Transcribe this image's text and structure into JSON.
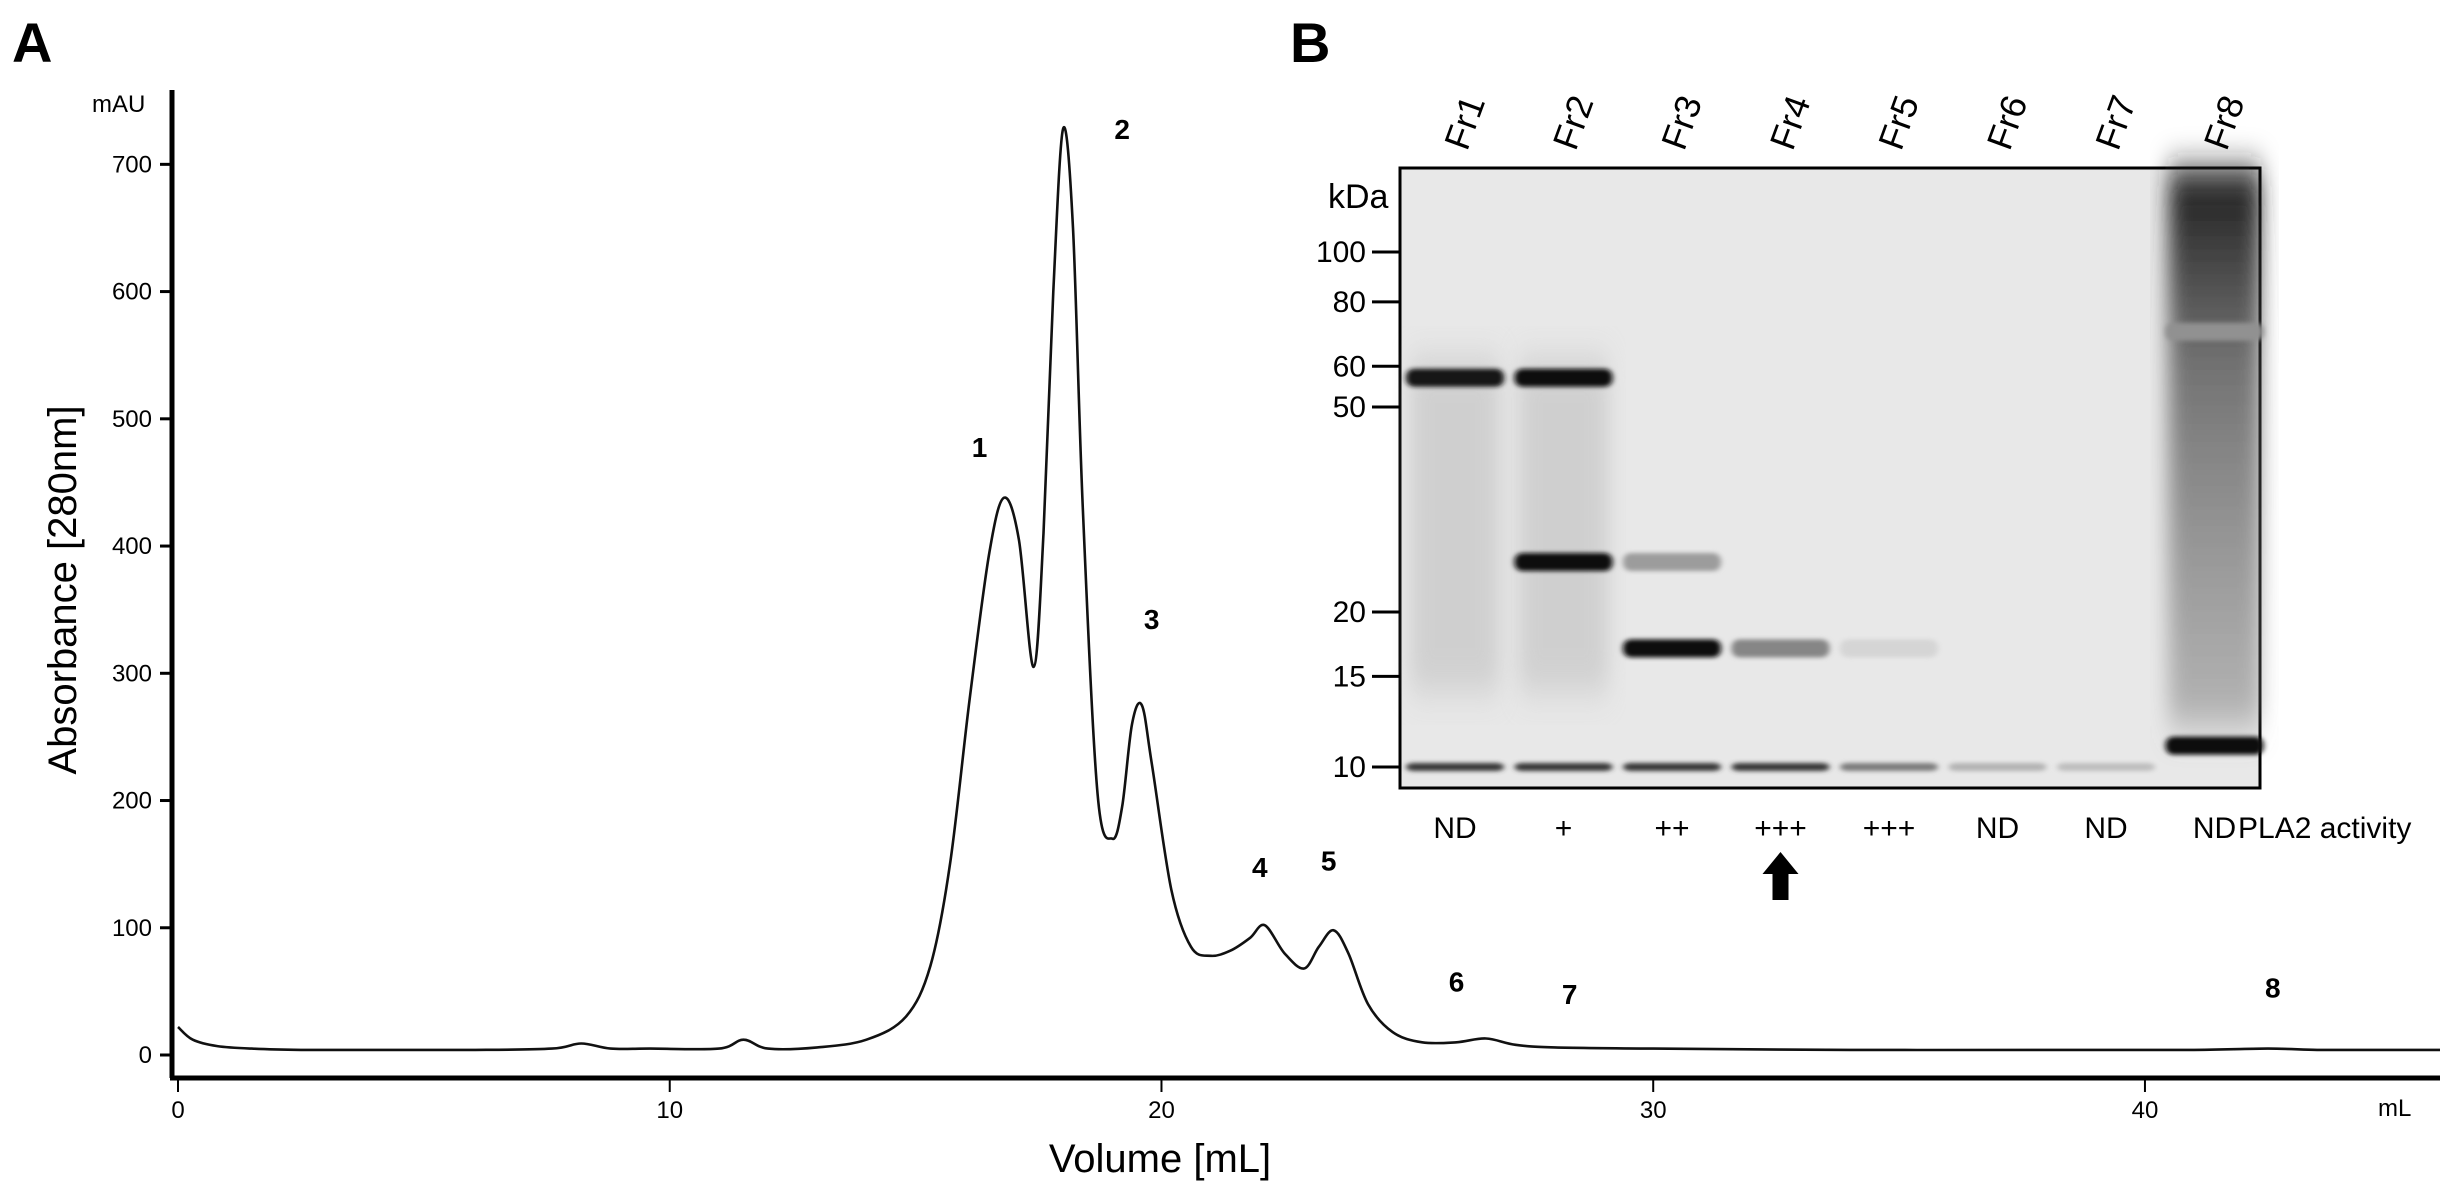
{
  "panel_a_label": "A",
  "panel_b_label": "B",
  "colors": {
    "trace": "#111111",
    "axis": "#000000",
    "gel_background": "#e8e8e8",
    "band": "#101010"
  },
  "chart_data": [
    {
      "type": "line",
      "panel": "A",
      "xlabel": "Volume [mL]",
      "ylabel": "Absorbance [280nm]",
      "x_unit": "mL",
      "y_unit": "mAU",
      "xlim": [
        0,
        46
      ],
      "ylim": [
        -10,
        760
      ],
      "x_ticks": [
        0,
        10,
        20,
        30,
        40
      ],
      "x_tick_labels": [
        "0",
        "10",
        "20",
        "30",
        "40"
      ],
      "y_ticks": [
        0,
        100,
        200,
        300,
        400,
        500,
        600,
        700
      ],
      "y_tick_labels": [
        "0",
        "100",
        "200",
        "300",
        "400",
        "500",
        "600",
        "700"
      ],
      "grid": false,
      "series": [
        {
          "x": [
            0,
            0.3,
            0.8,
            1.5,
            2.5,
            4,
            6,
            7.6,
            8.2,
            8.8,
            9.6,
            11,
            11.5,
            12,
            13,
            14,
            14.8,
            15.3,
            15.7,
            16.1,
            16.5,
            16.8,
            17.1,
            17.4,
            17.6,
            17.8,
            18.0,
            18.2,
            18.4,
            18.7,
            19.0,
            19.2,
            19.4,
            19.6,
            19.8,
            20.2,
            20.6,
            21.0,
            21.4,
            21.8,
            22.1,
            22.5,
            22.9,
            23.2,
            23.5,
            23.8,
            24.2,
            24.7,
            25.3,
            26.0,
            26.6,
            27.2,
            28.0,
            30,
            34,
            38,
            41,
            42.5,
            43.5,
            44.5,
            46
          ],
          "y": [
            22,
            12,
            7,
            5,
            4,
            4,
            4,
            5,
            9,
            5,
            5,
            5,
            12,
            5,
            6,
            12,
            30,
            70,
            150,
            280,
            395,
            438,
            405,
            305,
            410,
            600,
            728,
            650,
            430,
            205,
            170,
            195,
            260,
            275,
            230,
            130,
            85,
            78,
            82,
            92,
            102,
            80,
            68,
            85,
            98,
            80,
            40,
            18,
            10,
            10,
            13,
            8,
            6,
            5,
            4,
            4,
            4,
            5,
            4,
            4,
            4
          ],
          "style": "solid"
        }
      ],
      "annotations": [
        {
          "text": "1",
          "x": 16.3,
          "y": 470
        },
        {
          "text": "2",
          "x": 19.2,
          "y": 720
        },
        {
          "text": "3",
          "x": 19.8,
          "y": 335
        },
        {
          "text": "4",
          "x": 22.0,
          "y": 140
        },
        {
          "text": "5",
          "x": 23.4,
          "y": 145
        },
        {
          "text": "6",
          "x": 26.0,
          "y": 50
        },
        {
          "text": "7",
          "x": 28.3,
          "y": 40
        },
        {
          "text": "8",
          "x": 42.6,
          "y": 45
        }
      ]
    }
  ],
  "gel": {
    "unit_label": "kDa",
    "lanes": [
      "Fr1",
      "Fr2",
      "Fr3",
      "Fr4",
      "Fr5",
      "Fr6",
      "Fr7",
      "Fr8"
    ],
    "markers": [
      {
        "label": "100",
        "kda": 100
      },
      {
        "label": "80",
        "kda": 80
      },
      {
        "label": "60",
        "kda": 60
      },
      {
        "label": "50",
        "kda": 50
      },
      {
        "label": "20",
        "kda": 20
      },
      {
        "label": "15",
        "kda": 15
      },
      {
        "label": "10",
        "kda": 10
      }
    ],
    "bands": [
      {
        "lane": 0,
        "kda": 57,
        "intensity": 0.95
      },
      {
        "lane": 0,
        "kda": 10,
        "intensity": 0.8
      },
      {
        "lane": 1,
        "kda": 57,
        "intensity": 1.0
      },
      {
        "lane": 1,
        "kda": 25,
        "intensity": 1.0
      },
      {
        "lane": 1,
        "kda": 10,
        "intensity": 0.8
      },
      {
        "lane": 2,
        "kda": 25,
        "intensity": 0.35
      },
      {
        "lane": 2,
        "kda": 17,
        "intensity": 1.0
      },
      {
        "lane": 2,
        "kda": 10,
        "intensity": 0.8
      },
      {
        "lane": 3,
        "kda": 17,
        "intensity": 0.45
      },
      {
        "lane": 3,
        "kda": 10,
        "intensity": 0.8
      },
      {
        "lane": 4,
        "kda": 17,
        "intensity": 0.1
      },
      {
        "lane": 4,
        "kda": 10,
        "intensity": 0.5
      },
      {
        "lane": 5,
        "kda": 10,
        "intensity": 0.25
      },
      {
        "lane": 6,
        "kda": 10,
        "intensity": 0.2
      },
      {
        "lane": 7,
        "kda": 70,
        "intensity": 0.4
      },
      {
        "lane": 7,
        "kda": 11,
        "intensity": 1.0
      }
    ],
    "activity_label": "PLA2 activity",
    "activity": [
      "ND",
      "+",
      "++",
      "+++",
      "+++",
      "ND",
      "ND",
      "ND"
    ],
    "arrow_lane": 3
  }
}
